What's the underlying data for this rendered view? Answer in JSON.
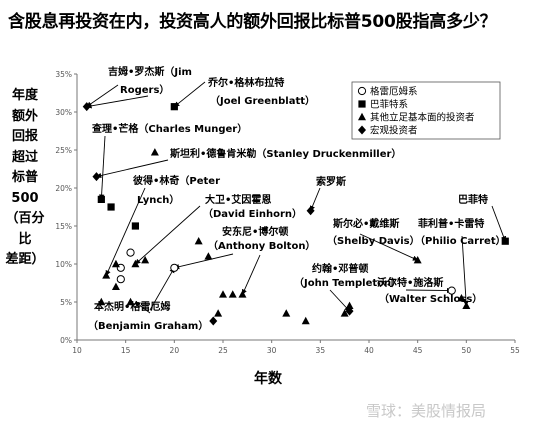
{
  "title": "含股息再投资在内，投资高人的额外回报比标普500股指高多少？",
  "watermark": "雪球：美股情报局",
  "chart_data": {
    "type": "scatter",
    "xlabel": "年数",
    "ylabel_lines": [
      "年度",
      "额外",
      "回报",
      "超过",
      "标普",
      "500",
      "（百分比",
      "差距）"
    ],
    "xlim": [
      10,
      55
    ],
    "ylim": [
      0,
      35
    ],
    "x_ticks": [
      10,
      15,
      20,
      25,
      30,
      35,
      40,
      45,
      50,
      55
    ],
    "y_ticks": [
      0,
      5,
      10,
      15,
      20,
      25,
      30,
      35
    ],
    "x_tick_labels": [
      "10",
      "15",
      "20",
      "25",
      "30",
      "35",
      "40",
      "45",
      "50",
      "55"
    ],
    "y_tick_labels": [
      "0%",
      "5%",
      "10%",
      "15%",
      "20%",
      "25%",
      "30%",
      "35%"
    ],
    "grid": false,
    "legend_position": "top-right",
    "series": [
      {
        "name": "格雷厄姆系",
        "marker": "circle-open",
        "points": [
          [
            14.5,
            9.5
          ],
          [
            15.5,
            11.5
          ],
          [
            14.5,
            8.0
          ],
          [
            20.0,
            9.5
          ],
          [
            48.5,
            6.5
          ]
        ]
      },
      {
        "name": "巴菲特系",
        "marker": "square",
        "points": [
          [
            20.0,
            30.7
          ],
          [
            12.5,
            18.5
          ],
          [
            13.5,
            17.5
          ],
          [
            16.0,
            15.0
          ],
          [
            54.0,
            13.0
          ]
        ]
      },
      {
        "name": "其他立足基本面的投资者",
        "marker": "triangle",
        "points": [
          [
            18.0,
            24.7
          ],
          [
            14.0,
            10.0
          ],
          [
            13.0,
            8.5
          ],
          [
            14.0,
            7.0
          ],
          [
            12.5,
            5.0
          ],
          [
            15.5,
            5.0
          ],
          [
            16.0,
            10.0
          ],
          [
            17.0,
            10.5
          ],
          [
            22.5,
            13.0
          ],
          [
            23.5,
            11.0
          ],
          [
            25.0,
            6.0
          ],
          [
            26.0,
            6.0
          ],
          [
            27.0,
            6.0
          ],
          [
            24.5,
            3.5
          ],
          [
            31.5,
            3.5
          ],
          [
            33.5,
            2.5
          ],
          [
            38.0,
            4.5
          ],
          [
            37.5,
            3.5
          ],
          [
            45.0,
            10.5
          ],
          [
            49.5,
            5.5
          ],
          [
            50.0,
            4.5
          ]
        ]
      },
      {
        "name": "宏观投资者",
        "marker": "diamond",
        "points": [
          [
            11.0,
            30.7
          ],
          [
            12.0,
            21.5
          ],
          [
            34.0,
            17.0
          ],
          [
            24.0,
            2.5
          ],
          [
            38.0,
            3.8
          ]
        ]
      }
    ],
    "annotations": [
      {
        "text": "吉姆•罗杰斯（Jim"
      },
      {
        "text": "Rogers）"
      },
      {
        "text": "乔尔•格林布拉特"
      },
      {
        "text": "（Joel Greenblatt）"
      },
      {
        "text": "查理•芒格（Charles Munger）"
      },
      {
        "text": "斯坦利•德鲁肯米勒（Stanley Druckenmiller）"
      },
      {
        "text": "彼得•林奇（Peter"
      },
      {
        "text": "Lynch）"
      },
      {
        "text": "大卫•艾因霍恩"
      },
      {
        "text": "（David Einhorn）"
      },
      {
        "text": "索罗斯"
      },
      {
        "text": "巴菲特"
      },
      {
        "text": "斯尔必•戴维斯"
      },
      {
        "text": "（Shelby Davis）"
      },
      {
        "text": "菲利普•卡雷特"
      },
      {
        "text": "（Philio Carret）"
      },
      {
        "text": "安东尼•博尔顿"
      },
      {
        "text": "（Anthony Bolton）"
      },
      {
        "text": "约翰•邓普顿"
      },
      {
        "text": "（John Templeton）"
      },
      {
        "text": "沃尔特•施洛斯"
      },
      {
        "text": "（Walter Schloss）"
      },
      {
        "text": "本杰明•格雷厄姆"
      },
      {
        "text": "（Benjamin Graham）"
      }
    ]
  }
}
